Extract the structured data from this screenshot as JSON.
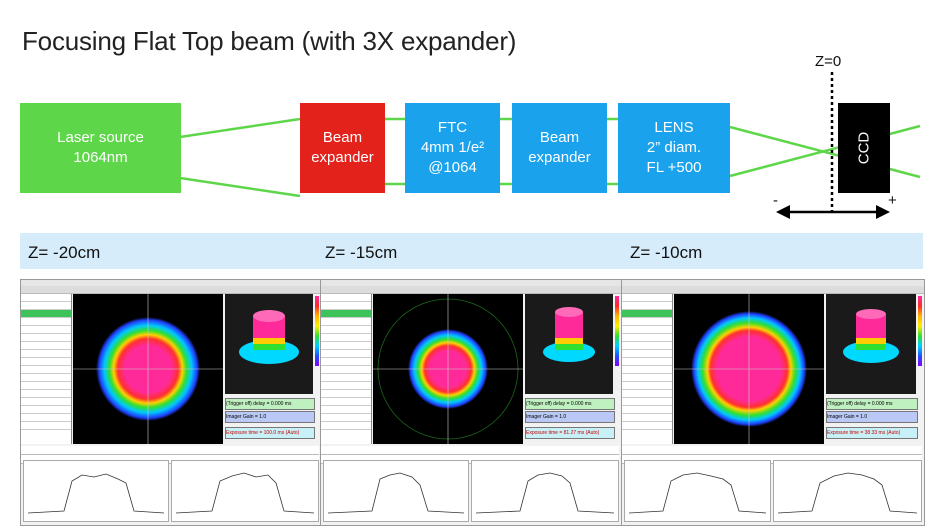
{
  "title": "Focusing Flat Top beam (with 3X expander)",
  "setup": {
    "laser": [
      "Laser source",
      "1064nm"
    ],
    "expander1": [
      "Beam",
      "expander"
    ],
    "ftc": [
      "FTC",
      "4mm 1/e²",
      "@1064"
    ],
    "expander2": [
      "Beam",
      "expander"
    ],
    "lens": [
      "LENS",
      "2” diam.",
      "FL +500"
    ],
    "ccd": "CCD",
    "z0": "Z=0",
    "minus": "-",
    "plus": "+"
  },
  "positions": [
    {
      "label": "Z= -20cm",
      "trigger": "(Trigger off) delay = 0.000 ms",
      "gain": "Imager Gain = 1.0",
      "exposure": "Exposure time = 100.0 ms (Auto)"
    },
    {
      "label": "Z= -15cm",
      "trigger": "(Trigger off) delay = 0.000 ms",
      "gain": "Imager Gain = 1.0",
      "exposure": "Exposure time = 81.27 ms (Auto)"
    },
    {
      "label": "Z= -10cm",
      "trigger": "(Trigger off) delay = 0.000 ms",
      "gain": "Imager Gain = 1.0",
      "exposure": "Exposure time = 38.33 ms (Auto)"
    }
  ],
  "colors": {
    "laser": "#5ed64a",
    "expander": "#e3221b",
    "optics": "#1aa2ec",
    "beam_line": "#5ed64a",
    "header_strip": "#d6ecfa"
  }
}
